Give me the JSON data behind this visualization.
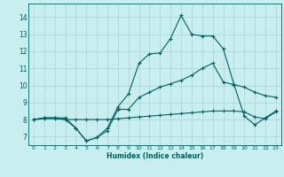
{
  "xlabel": "Humidex (Indice chaleur)",
  "bg_color": "#c8eef0",
  "grid_color": "#b0d8d8",
  "line_color": "#006060",
  "xlim": [
    -0.5,
    23.5
  ],
  "ylim": [
    6.5,
    14.8
  ],
  "xticks": [
    0,
    1,
    2,
    3,
    4,
    5,
    6,
    7,
    8,
    9,
    10,
    11,
    12,
    13,
    14,
    15,
    16,
    17,
    18,
    19,
    20,
    21,
    22,
    23
  ],
  "yticks": [
    7,
    8,
    9,
    10,
    11,
    12,
    13,
    14
  ],
  "line1_x": [
    0,
    1,
    2,
    3,
    4,
    5,
    6,
    7,
    8,
    9,
    10,
    11,
    12,
    13,
    14,
    15,
    16,
    17,
    18,
    19,
    20,
    21,
    22,
    23
  ],
  "line1_y": [
    8.0,
    8.1,
    8.1,
    8.1,
    7.5,
    6.75,
    6.95,
    7.5,
    8.75,
    9.5,
    11.3,
    11.85,
    11.9,
    12.75,
    14.1,
    13.0,
    12.9,
    12.9,
    12.15,
    10.1,
    8.2,
    7.7,
    8.1,
    8.5
  ],
  "line2_x": [
    0,
    1,
    2,
    3,
    4,
    5,
    6,
    7,
    8,
    9,
    10,
    11,
    12,
    13,
    14,
    15,
    16,
    17,
    18,
    19,
    20,
    21,
    22,
    23
  ],
  "line2_y": [
    8.0,
    8.1,
    8.1,
    8.0,
    7.5,
    6.75,
    6.95,
    7.35,
    8.6,
    8.6,
    9.3,
    9.6,
    9.9,
    10.1,
    10.3,
    10.6,
    11.0,
    11.3,
    10.2,
    10.05,
    9.9,
    9.6,
    9.4,
    9.3
  ],
  "line3_x": [
    0,
    1,
    2,
    3,
    4,
    5,
    6,
    7,
    8,
    9,
    10,
    11,
    12,
    13,
    14,
    15,
    16,
    17,
    18,
    19,
    20,
    21,
    22,
    23
  ],
  "line3_y": [
    8.0,
    8.05,
    8.05,
    8.0,
    8.0,
    8.0,
    8.0,
    8.0,
    8.05,
    8.1,
    8.15,
    8.2,
    8.25,
    8.3,
    8.35,
    8.4,
    8.45,
    8.5,
    8.5,
    8.5,
    8.45,
    8.15,
    8.05,
    8.45
  ]
}
